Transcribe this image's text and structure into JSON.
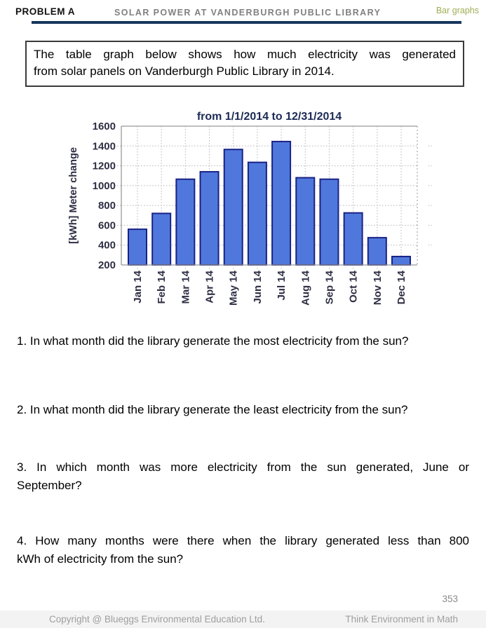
{
  "header": {
    "problem_label": "PROBLEM A",
    "title": "SOLAR POWER AT VANDERBURGH PUBLIC LIBRARY",
    "tag": "Bar graphs",
    "rule_color": "#17365d",
    "tag_color": "#9fae54"
  },
  "intro": {
    "lines": [
      "The table graph below shows how much electricity was generated",
      "from solar panels on Vanderburgh Public Library in 2014."
    ]
  },
  "chart_data": {
    "type": "bar",
    "title": "from 1/1/2014 to 12/31/2014",
    "ylabel": "[kWh] Meter change",
    "xlabel": "",
    "categories": [
      "Jan 14",
      "Feb 14",
      "Mar 14",
      "Apr 14",
      "May 14",
      "Jun 14",
      "Jul 14",
      "Aug 14",
      "Sep 14",
      "Oct 14",
      "Nov 14",
      "Dec 14"
    ],
    "values": [
      560,
      720,
      1065,
      1140,
      1365,
      1235,
      1445,
      1080,
      1065,
      725,
      475,
      285
    ],
    "ylim": [
      200,
      1600
    ],
    "ytick_step": 200,
    "grid": true,
    "legend": false,
    "bar_fill": "#5078dc",
    "bar_stroke": "#1a2285"
  },
  "questions": [
    {
      "lines": [
        "1. In what month did the library generate the most electricity from the sun?"
      ]
    },
    {
      "lines": [
        "2. In what month did the library generate the least electricity from the sun?"
      ]
    },
    {
      "lines": [
        "3. In which month was more electricity from the sun generated, June or",
        "September?"
      ]
    },
    {
      "lines": [
        "4. How many months were there when the library generated less than 800",
        "kWh of electricity from the sun?"
      ]
    }
  ],
  "footer": {
    "page_number": "353",
    "copyright": "Copyright @ Blueggs Environmental Education Ltd.",
    "tagline": "Think Environment in Math"
  }
}
